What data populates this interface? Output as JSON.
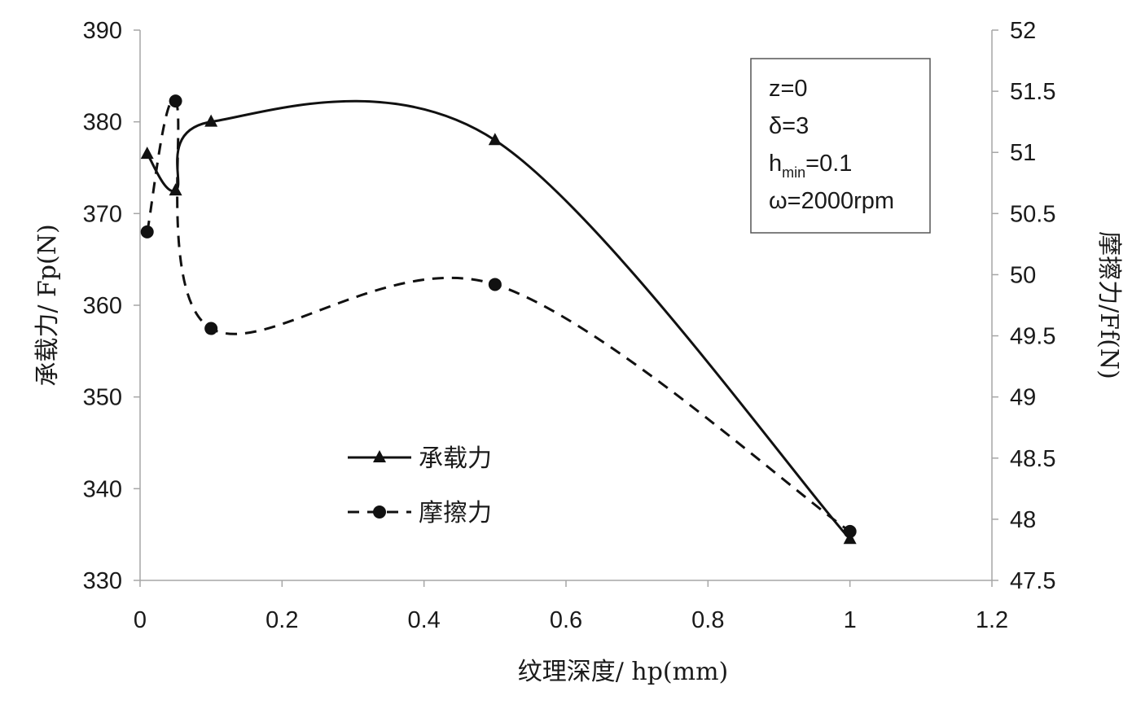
{
  "chart_data": {
    "type": "line",
    "x_axis": {
      "label": "纹理深度/ hp(mm)",
      "range": [
        0,
        1.2
      ],
      "ticks": [
        0,
        0.2,
        0.4,
        0.6,
        0.8,
        1,
        1.2
      ],
      "tick_labels": [
        "0",
        "0.2",
        "0.4",
        "0.6",
        "0.8",
        "1",
        "1.2"
      ]
    },
    "y_left_axis": {
      "label": "承载力/ Fp(N)",
      "range": [
        330,
        390
      ],
      "ticks": [
        330,
        340,
        350,
        360,
        370,
        380,
        390
      ],
      "tick_labels": [
        "330",
        "340",
        "350",
        "360",
        "370",
        "380",
        "390"
      ]
    },
    "y_right_axis": {
      "label": "摩擦力/Ff(N)",
      "range": [
        47.5,
        52
      ],
      "ticks": [
        47.5,
        48,
        48.5,
        49,
        49.5,
        50,
        50.5,
        51,
        51.5,
        52
      ],
      "tick_labels": [
        "47.5",
        "48",
        "48.5",
        "49",
        "49.5",
        "50",
        "50.5",
        "51",
        "51.5",
        "52"
      ]
    },
    "series": [
      {
        "name": "承载力",
        "axis": "left",
        "marker": "triangle",
        "line_style": "solid",
        "x": [
          0.01,
          0.05,
          0.1,
          0.5,
          1
        ],
        "y": [
          376.5,
          372.5,
          380,
          378,
          334.5
        ]
      },
      {
        "name": "摩擦力",
        "axis": "right",
        "marker": "circle",
        "line_style": "dashed",
        "x": [
          0.01,
          0.05,
          0.1,
          0.5,
          1
        ],
        "y": [
          50.35,
          51.42,
          49.56,
          49.92,
          47.9
        ]
      }
    ],
    "legend": {
      "placement": "center-left"
    },
    "annotation": {
      "placement": "top-right",
      "lines": [
        {
          "main": "z=0",
          "sub": "",
          "tail": ""
        },
        {
          "main": "δ=3",
          "sub": "",
          "tail": ""
        },
        {
          "main": "h",
          "sub": "min",
          "tail": "=0.1"
        },
        {
          "main": "ω=2000rpm",
          "sub": "",
          "tail": ""
        }
      ]
    },
    "grid": false
  }
}
